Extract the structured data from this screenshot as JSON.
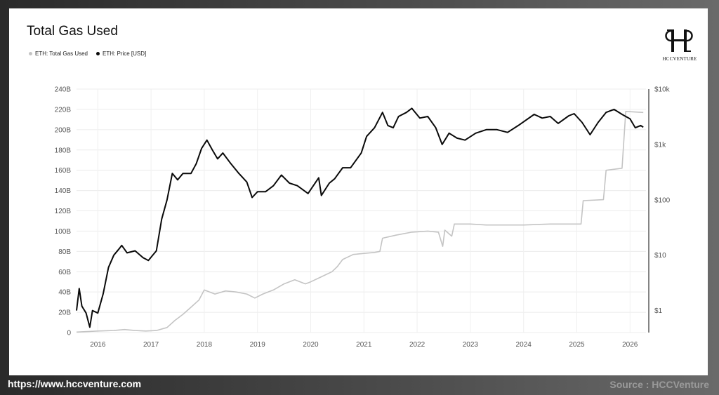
{
  "footer": {
    "url": "https://www.hccventure.com",
    "source": "Source : HCCVenture"
  },
  "logo": {
    "text": "HCCVENTURE"
  },
  "chart_data": {
    "type": "line",
    "title": "Total Gas Used",
    "legend_position": "top-left",
    "grid": true,
    "x_ticks": [
      "2016",
      "2017",
      "2018",
      "2019",
      "2020",
      "2021",
      "2022",
      "2023",
      "2024",
      "2025",
      "2026"
    ],
    "x_range": [
      2015.6,
      2026.3
    ],
    "y_left": {
      "ticks": [
        "0",
        "20B",
        "40B",
        "60B",
        "80B",
        "100B",
        "120B",
        "140B",
        "160B",
        "180B",
        "200B",
        "220B",
        "240B"
      ],
      "range": [
        0,
        240
      ]
    },
    "y_right": {
      "scale": "log",
      "ticks": [
        "$1",
        "$10",
        "$100",
        "$1k",
        "$10k"
      ],
      "range": [
        0.4,
        10000
      ]
    },
    "colors": {
      "gas": "#c4c4c4",
      "price": "#0a0a0a"
    },
    "series": [
      {
        "name": "ETH: Total Gas Used",
        "axis": "left",
        "points": [
          [
            2015.6,
            0.5
          ],
          [
            2015.8,
            1
          ],
          [
            2016.0,
            1.5
          ],
          [
            2016.3,
            2
          ],
          [
            2016.5,
            3
          ],
          [
            2016.7,
            2
          ],
          [
            2016.9,
            1.5
          ],
          [
            2017.1,
            2
          ],
          [
            2017.3,
            5
          ],
          [
            2017.45,
            12
          ],
          [
            2017.6,
            18
          ],
          [
            2017.75,
            25
          ],
          [
            2017.9,
            32
          ],
          [
            2018.0,
            42
          ],
          [
            2018.2,
            38
          ],
          [
            2018.4,
            41
          ],
          [
            2018.6,
            40
          ],
          [
            2018.8,
            38
          ],
          [
            2018.95,
            34
          ],
          [
            2019.1,
            38
          ],
          [
            2019.3,
            42
          ],
          [
            2019.5,
            48
          ],
          [
            2019.7,
            52
          ],
          [
            2019.9,
            48
          ],
          [
            2020.0,
            50
          ],
          [
            2020.2,
            55
          ],
          [
            2020.4,
            60
          ],
          [
            2020.5,
            65
          ],
          [
            2020.6,
            72
          ],
          [
            2020.8,
            77
          ],
          [
            2021.0,
            78
          ],
          [
            2021.2,
            79
          ],
          [
            2021.3,
            80
          ],
          [
            2021.35,
            93
          ],
          [
            2021.6,
            96
          ],
          [
            2021.9,
            99
          ],
          [
            2022.2,
            100
          ],
          [
            2022.4,
            99
          ],
          [
            2022.48,
            85
          ],
          [
            2022.52,
            101
          ],
          [
            2022.65,
            95
          ],
          [
            2022.7,
            107
          ],
          [
            2023.0,
            107
          ],
          [
            2023.3,
            106
          ],
          [
            2023.6,
            106
          ],
          [
            2024.0,
            106
          ],
          [
            2024.5,
            107
          ],
          [
            2025.0,
            107
          ],
          [
            2025.08,
            107
          ],
          [
            2025.12,
            130
          ],
          [
            2025.5,
            131
          ],
          [
            2025.55,
            160
          ],
          [
            2025.85,
            162
          ],
          [
            2025.92,
            218
          ],
          [
            2026.25,
            217
          ]
        ]
      },
      {
        "name": "ETH: Price [USD]",
        "axis": "right",
        "points": [
          [
            2015.6,
            1.0
          ],
          [
            2015.65,
            2.5
          ],
          [
            2015.7,
            1.2
          ],
          [
            2015.78,
            0.9
          ],
          [
            2015.85,
            0.5
          ],
          [
            2015.9,
            1.0
          ],
          [
            2016.0,
            0.9
          ],
          [
            2016.1,
            2.0
          ],
          [
            2016.2,
            6.0
          ],
          [
            2016.3,
            10
          ],
          [
            2016.4,
            13
          ],
          [
            2016.45,
            15
          ],
          [
            2016.55,
            11
          ],
          [
            2016.7,
            12
          ],
          [
            2016.85,
            9
          ],
          [
            2016.95,
            8
          ],
          [
            2017.1,
            12
          ],
          [
            2017.2,
            45
          ],
          [
            2017.3,
            100
          ],
          [
            2017.4,
            300
          ],
          [
            2017.5,
            230
          ],
          [
            2017.6,
            300
          ],
          [
            2017.75,
            300
          ],
          [
            2017.85,
            450
          ],
          [
            2017.95,
            850
          ],
          [
            2018.05,
            1200
          ],
          [
            2018.15,
            800
          ],
          [
            2018.25,
            550
          ],
          [
            2018.35,
            700
          ],
          [
            2018.5,
            450
          ],
          [
            2018.65,
            300
          ],
          [
            2018.8,
            210
          ],
          [
            2018.9,
            110
          ],
          [
            2019.0,
            140
          ],
          [
            2019.15,
            140
          ],
          [
            2019.3,
            180
          ],
          [
            2019.45,
            280
          ],
          [
            2019.6,
            200
          ],
          [
            2019.75,
            180
          ],
          [
            2019.95,
            130
          ],
          [
            2020.15,
            250
          ],
          [
            2020.2,
            120
          ],
          [
            2020.35,
            200
          ],
          [
            2020.45,
            240
          ],
          [
            2020.6,
            380
          ],
          [
            2020.75,
            380
          ],
          [
            2020.95,
            700
          ],
          [
            2021.05,
            1400
          ],
          [
            2021.2,
            2000
          ],
          [
            2021.35,
            3800
          ],
          [
            2021.45,
            2200
          ],
          [
            2021.55,
            2000
          ],
          [
            2021.65,
            3200
          ],
          [
            2021.8,
            3800
          ],
          [
            2021.9,
            4500
          ],
          [
            2022.05,
            3000
          ],
          [
            2022.2,
            3200
          ],
          [
            2022.35,
            2000
          ],
          [
            2022.47,
            1000
          ],
          [
            2022.6,
            1600
          ],
          [
            2022.75,
            1300
          ],
          [
            2022.9,
            1200
          ],
          [
            2023.1,
            1600
          ],
          [
            2023.3,
            1850
          ],
          [
            2023.5,
            1850
          ],
          [
            2023.7,
            1650
          ],
          [
            2023.9,
            2200
          ],
          [
            2024.2,
            3500
          ],
          [
            2024.35,
            3000
          ],
          [
            2024.5,
            3200
          ],
          [
            2024.65,
            2400
          ],
          [
            2024.85,
            3300
          ],
          [
            2024.95,
            3600
          ],
          [
            2025.1,
            2500
          ],
          [
            2025.25,
            1500
          ],
          [
            2025.4,
            2500
          ],
          [
            2025.55,
            3800
          ],
          [
            2025.7,
            4300
          ],
          [
            2025.85,
            3500
          ],
          [
            2026.0,
            2900
          ],
          [
            2026.1,
            2000
          ],
          [
            2026.2,
            2200
          ],
          [
            2026.25,
            2050
          ]
        ]
      }
    ]
  }
}
